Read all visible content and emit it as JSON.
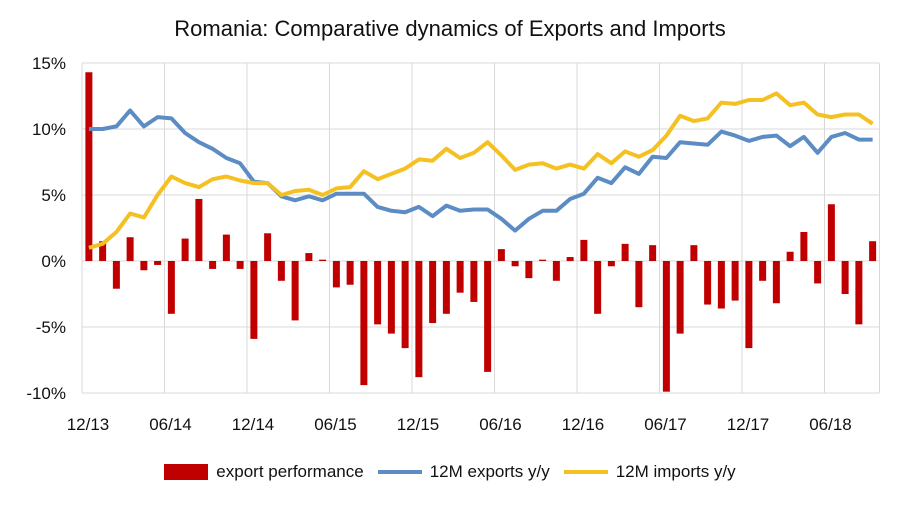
{
  "chart_data": {
    "type": "bar+line",
    "title": "Romania: Comparative dynamics of Exports and Imports",
    "xlabel": "",
    "ylabel": "",
    "ylim": [
      -10,
      15
    ],
    "yticks": [
      "-10%",
      "-5%",
      "0%",
      "5%",
      "10%",
      "15%"
    ],
    "ytick_values": [
      -10,
      -5,
      0,
      5,
      10,
      15
    ],
    "xtick_labels": [
      "12/13",
      "06/14",
      "12/14",
      "06/15",
      "12/15",
      "06/16",
      "12/16",
      "06/17",
      "12/17",
      "06/18"
    ],
    "grid": true,
    "legend_position": "bottom",
    "categories": [
      "12/13",
      "01/14",
      "02/14",
      "03/14",
      "04/14",
      "05/14",
      "06/14",
      "07/14",
      "08/14",
      "09/14",
      "10/14",
      "11/14",
      "12/14",
      "01/15",
      "02/15",
      "03/15",
      "04/15",
      "05/15",
      "06/15",
      "07/15",
      "08/15",
      "09/15",
      "10/15",
      "11/15",
      "12/15",
      "01/16",
      "02/16",
      "03/16",
      "04/16",
      "05/16",
      "06/16",
      "07/16",
      "08/16",
      "09/16",
      "10/16",
      "11/16",
      "12/16",
      "01/17",
      "02/17",
      "03/17",
      "04/17",
      "05/17",
      "06/17",
      "07/17",
      "08/17",
      "09/17",
      "10/17",
      "11/17",
      "12/17",
      "01/18",
      "02/18",
      "03/18",
      "04/18",
      "05/18",
      "06/18",
      "07/18",
      "08/18",
      "09/18"
    ],
    "series": [
      {
        "name": "export performance",
        "type": "bar",
        "color": "#c00000",
        "values": [
          14.3,
          1.5,
          -2.1,
          1.8,
          -0.7,
          -0.3,
          -4.0,
          1.7,
          4.7,
          -0.6,
          2.0,
          -0.6,
          -5.9,
          2.1,
          -1.5,
          -4.5,
          0.6,
          0.1,
          -2.0,
          -1.8,
          -9.4,
          -4.8,
          -5.5,
          -6.6,
          -8.8,
          -4.7,
          -4.0,
          -2.4,
          -3.1,
          -8.4,
          0.9,
          -0.4,
          -1.3,
          0.1,
          -1.5,
          0.3,
          1.6,
          -4.0,
          -0.4,
          1.3,
          -3.5,
          1.2,
          -9.9,
          -5.5,
          1.2,
          -3.3,
          -3.6,
          -3.0,
          -6.6,
          -1.5,
          -3.2,
          0.7,
          2.2,
          -1.7,
          4.3,
          -2.5,
          -4.8,
          1.5
        ]
      },
      {
        "name": "12M exports y/y",
        "type": "line",
        "color": "#5b8cc4",
        "values": [
          10.0,
          10.0,
          10.2,
          11.4,
          10.2,
          10.9,
          10.8,
          9.7,
          9.0,
          8.5,
          7.8,
          7.4,
          6.0,
          5.9,
          4.9,
          4.6,
          4.9,
          4.6,
          5.1,
          5.1,
          5.1,
          4.1,
          3.8,
          3.7,
          4.1,
          3.4,
          4.2,
          3.8,
          3.9,
          3.9,
          3.2,
          2.3,
          3.2,
          3.8,
          3.8,
          4.7,
          5.1,
          6.3,
          5.9,
          7.1,
          6.6,
          7.9,
          7.8,
          9.0,
          8.9,
          8.8,
          9.8,
          9.5,
          9.1,
          9.4,
          9.5,
          8.7,
          9.4,
          8.2,
          9.4,
          9.7,
          9.2,
          9.2
        ]
      },
      {
        "name": "12M imports y/y",
        "type": "line",
        "color": "#f5c021",
        "values": [
          1.0,
          1.3,
          2.2,
          3.6,
          3.3,
          5.0,
          6.4,
          5.9,
          5.6,
          6.2,
          6.4,
          6.1,
          5.9,
          5.9,
          5.0,
          5.3,
          5.4,
          5.0,
          5.5,
          5.6,
          6.8,
          6.2,
          6.6,
          7.0,
          7.7,
          7.6,
          8.5,
          7.8,
          8.2,
          9.0,
          8.0,
          6.9,
          7.3,
          7.4,
          7.0,
          7.3,
          7.0,
          8.1,
          7.4,
          8.3,
          7.9,
          8.4,
          9.5,
          11.0,
          10.6,
          10.8,
          12.0,
          11.9,
          12.2,
          12.2,
          12.7,
          11.8,
          12.0,
          11.1,
          10.9,
          11.1,
          11.1,
          10.4
        ]
      }
    ]
  }
}
